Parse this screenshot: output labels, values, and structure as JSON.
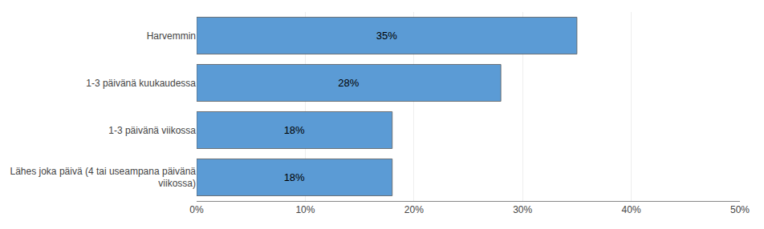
{
  "chart_data": {
    "type": "bar",
    "orientation": "horizontal",
    "categories": [
      "Lähes joka päivä (4 tai useampana päivänä\nviikossa)",
      "1-3 päivänä viikossa",
      "1-3 päivänä kuukaudessa",
      "Harvemmin"
    ],
    "values": [
      18,
      18,
      28,
      35
    ],
    "value_labels": [
      "18%",
      "18%",
      "28%",
      "35%"
    ],
    "data_labels": true,
    "color": "#5b9bd5",
    "xlim": [
      0,
      50
    ],
    "xticks": [
      {
        "value": 0,
        "label": "0%"
      },
      {
        "value": 10,
        "label": "10%"
      },
      {
        "value": 20,
        "label": "20%"
      },
      {
        "value": 30,
        "label": "30%"
      },
      {
        "value": 40,
        "label": "40%"
      },
      {
        "value": 50,
        "label": "50%"
      }
    ],
    "grid": true
  }
}
